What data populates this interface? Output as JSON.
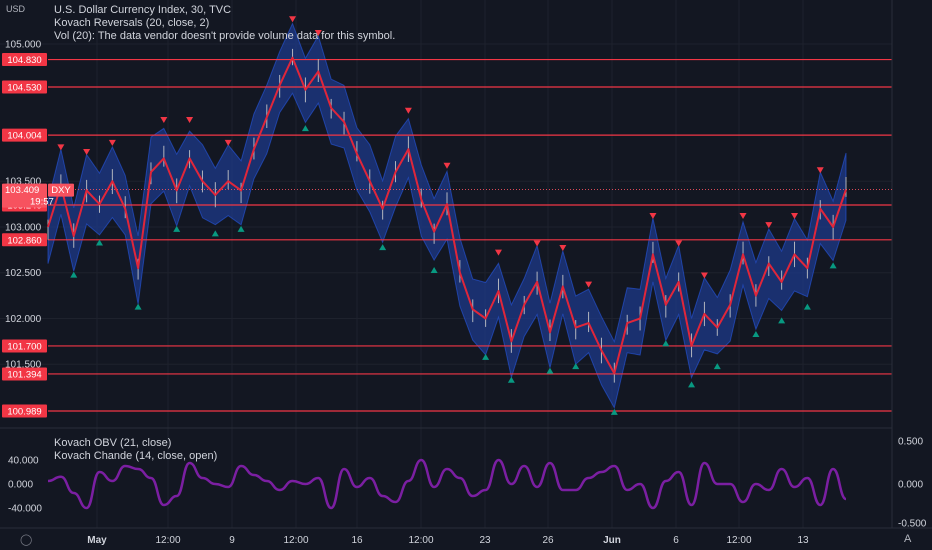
{
  "header": {
    "currency_label": "USD",
    "title": "U.S. Dollar Currency Index, 30, TVC",
    "indicator1": "Kovach Reversals (20, close, 2)",
    "indicator2": "Vol (20): The data vendor doesn't provide volume data for this symbol."
  },
  "sub_header": {
    "indicator1": "Kovach OBV (21, close)",
    "indicator2": "Kovach Chande (14, close, open)"
  },
  "price_axis": {
    "ticks": [
      "105.000",
      "103.500",
      "103.000",
      "102.500",
      "102.000",
      "101.500"
    ],
    "tick_values": [
      105.0,
      103.5,
      103.0,
      102.5,
      102.0,
      101.5
    ]
  },
  "levels": {
    "values": [
      104.83,
      104.53,
      104.004,
      103.24,
      102.86,
      101.7,
      101.394,
      100.989
    ],
    "labels": [
      "104.830",
      "104.530",
      "104.004",
      "103.240",
      "102.860",
      "101.700",
      "101.394",
      "100.989"
    ]
  },
  "last_price": {
    "value": "103.409",
    "symbol": "DXY",
    "countdown": "19:57"
  },
  "time_axis": {
    "labels": [
      "May",
      "12:00",
      "9",
      "12:00",
      "16",
      "12:00",
      "23",
      "26",
      "Jun",
      "6",
      "12:00",
      "13"
    ]
  },
  "osc_axis": {
    "left_ticks": [
      "40.000",
      "0.000",
      "-40.000"
    ],
    "right_ticks": [
      "0.500",
      "0.000",
      "-0.500"
    ]
  },
  "colors": {
    "background": "#131722",
    "level_line": "#f23645",
    "band": "#1e3a8a",
    "price_line": "#e0263a",
    "up_marker": "#089981",
    "down_marker": "#f23645",
    "oscillator": "#7b1fa2"
  },
  "chart_data": [
    {
      "type": "line",
      "title": "U.S. Dollar Currency Index, 30, TVC",
      "x_labels": [
        "May",
        "12:00",
        "9",
        "12:00",
        "16",
        "12:00",
        "23",
        "26",
        "Jun",
        "6",
        "12:00",
        "13"
      ],
      "series": [
        {
          "name": "U.S. Dollar Currency Index",
          "values": [
            103.0,
            103.45,
            102.9,
            103.4,
            103.25,
            103.5,
            103.2,
            102.55,
            103.6,
            103.75,
            103.4,
            103.75,
            103.5,
            103.35,
            103.5,
            103.4,
            103.85,
            104.2,
            104.55,
            104.85,
            104.5,
            104.7,
            104.3,
            104.15,
            103.8,
            103.5,
            103.2,
            103.6,
            103.85,
            103.3,
            102.95,
            103.25,
            102.5,
            102.1,
            102.0,
            102.3,
            101.75,
            102.15,
            102.4,
            101.85,
            102.35,
            101.9,
            101.95,
            101.65,
            101.4,
            101.95,
            102.0,
            102.7,
            102.15,
            102.4,
            101.7,
            102.05,
            101.9,
            102.15,
            102.7,
            102.25,
            102.6,
            102.4,
            102.7,
            102.55,
            103.2,
            103.0,
            103.41
          ],
          "ylim": [
            100.9,
            105.1
          ]
        }
      ],
      "levels": [
        104.83,
        104.53,
        104.004,
        103.24,
        102.86,
        101.7,
        101.394,
        100.989
      ],
      "last_value": 103.409
    },
    {
      "type": "line",
      "series": [
        {
          "name": "Kovach Chande",
          "values": [
            5,
            12,
            -15,
            -40,
            20,
            5,
            30,
            25,
            10,
            -35,
            -20,
            35,
            10,
            0,
            -5,
            30,
            15,
            5,
            -10,
            5,
            0,
            10,
            -40,
            25,
            -5,
            10,
            -20,
            -30,
            5,
            40,
            -5,
            25,
            10,
            -20,
            -10,
            40,
            0,
            30,
            -5,
            35,
            -10,
            -10,
            10,
            20,
            30,
            -10,
            0,
            -40,
            5,
            20,
            -35,
            35,
            0,
            0,
            -30,
            0,
            -10,
            25,
            -5,
            10,
            -35,
            25,
            -25
          ],
          "ylim": [
            -55,
            65
          ]
        }
      ],
      "left_ticks": [
        40,
        0,
        -40
      ],
      "right_ticks": [
        0.5,
        0.0,
        -0.5
      ]
    }
  ]
}
